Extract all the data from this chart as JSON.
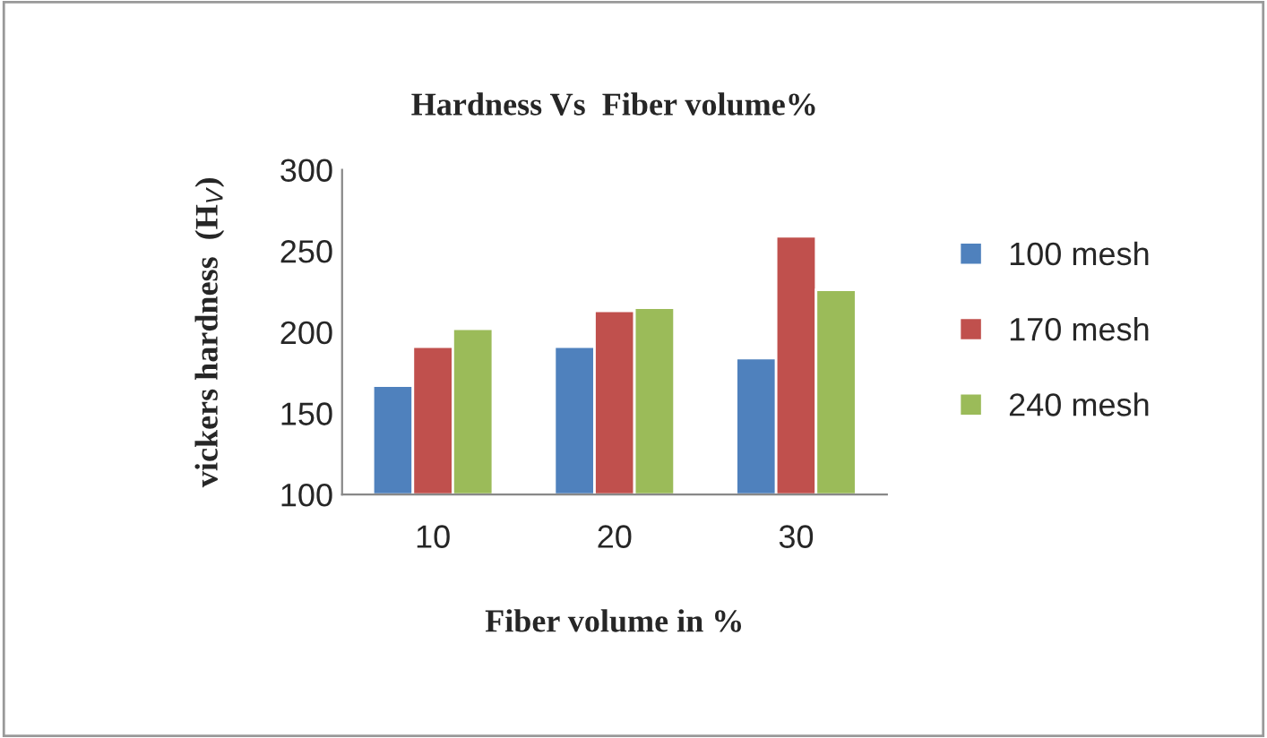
{
  "chart_data": {
    "type": "bar",
    "title": "Hardness Vs  Fiber volume%",
    "xlabel": "Fiber volume in %",
    "ylabel": "vickers hardness  (H$_{V}$)",
    "categories": [
      "10",
      "20",
      "30"
    ],
    "series": [
      {
        "name": "100 mesh",
        "color": "#4f81bd",
        "values": [
          167,
          191,
          184
        ]
      },
      {
        "name": "170 mesh",
        "color": "#c0504d",
        "values": [
          191,
          213,
          259
        ]
      },
      {
        "name": "240 mesh",
        "color": "#9bbb59",
        "values": [
          202,
          215,
          226
        ]
      }
    ],
    "ylim": [
      100,
      300
    ],
    "yticks": [
      100,
      150,
      200,
      250,
      300
    ],
    "grid": false,
    "legend": "right"
  }
}
